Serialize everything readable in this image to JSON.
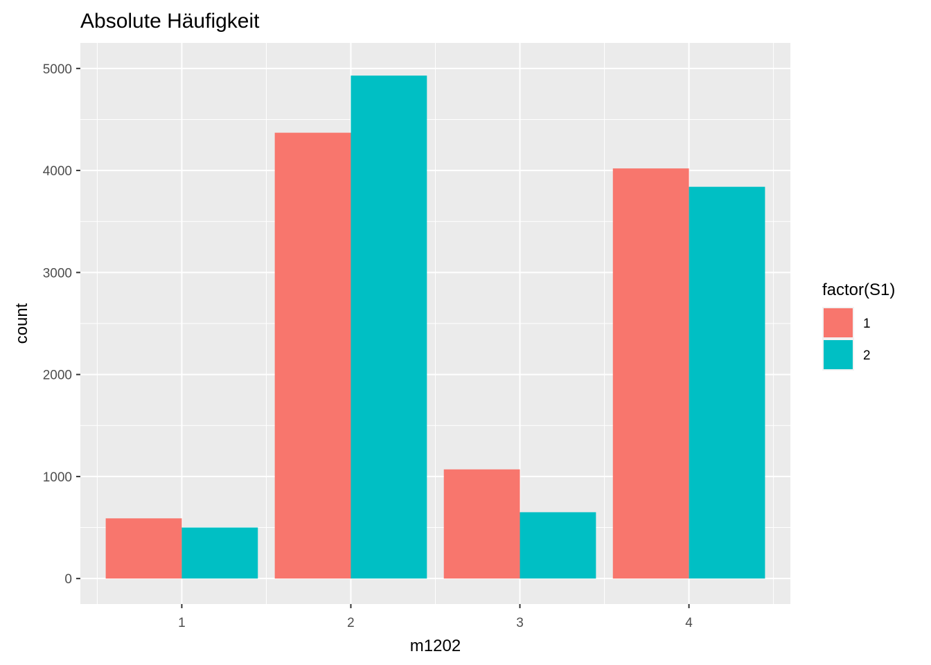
{
  "chart_data": {
    "type": "bar",
    "title": "Absolute Häufigkeit",
    "xlabel": "m1202",
    "ylabel": "count",
    "categories": [
      "1",
      "2",
      "3",
      "4"
    ],
    "series": [
      {
        "name": "1",
        "color": "#F8766D",
        "values": [
          590,
          4370,
          1070,
          4020
        ]
      },
      {
        "name": "2",
        "color": "#00BFC4",
        "values": [
          500,
          4930,
          650,
          3840
        ]
      }
    ],
    "ylim": [
      -250,
      5250
    ],
    "yticks": [
      0,
      1000,
      2000,
      3000,
      4000,
      5000
    ],
    "ytick_labels": [
      "0",
      "1000",
      "2000",
      "3000",
      "4000",
      "5000"
    ],
    "grid": true,
    "legend": {
      "title": "factor(S1)",
      "position": "right"
    },
    "panel_background": "#EBEBEB",
    "grid_color": "#FFFFFF"
  }
}
